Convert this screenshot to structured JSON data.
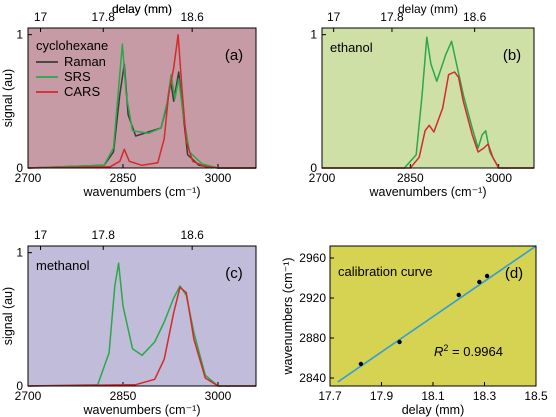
{
  "chart_data": [
    {
      "type": "line",
      "panel_label": "(a)",
      "sample_label": "cyclohexane",
      "background": "#c79ba6",
      "xlabel": "wavenumbers (cm⁻¹)",
      "ylabel": "signal (au)",
      "top_xlabel": "delay (mm)",
      "xlim": [
        2700,
        3060
      ],
      "ylim": [
        0,
        1.05
      ],
      "xticks": [
        "2700",
        "2850",
        "3000"
      ],
      "yticks": [
        "0",
        "1"
      ],
      "top_ticks": [
        "17",
        "17.8",
        "18.6"
      ],
      "legend": {
        "placement": "top-left",
        "entries": [
          "Raman",
          "SRS",
          "CARS"
        ]
      },
      "series": [
        {
          "name": "Raman",
          "color": "#3b3b3b",
          "x": [
            2700,
            2820,
            2835,
            2845,
            2852,
            2858,
            2870,
            2890,
            2910,
            2920,
            2925,
            2930,
            2938,
            2945,
            2952,
            2970,
            3000,
            3060
          ],
          "y": [
            0.0,
            0.02,
            0.12,
            0.55,
            0.78,
            0.4,
            0.24,
            0.27,
            0.3,
            0.48,
            0.66,
            0.5,
            0.72,
            0.4,
            0.1,
            0.02,
            0.0,
            0.0
          ]
        },
        {
          "name": "SRS",
          "color": "#2aa84a",
          "x": [
            2700,
            2820,
            2835,
            2843,
            2849,
            2855,
            2865,
            2890,
            2910,
            2920,
            2926,
            2932,
            2938,
            2945,
            2955,
            2975,
            3000,
            3060
          ],
          "y": [
            0.0,
            0.02,
            0.15,
            0.6,
            0.93,
            0.55,
            0.28,
            0.26,
            0.3,
            0.5,
            0.7,
            0.52,
            0.67,
            0.4,
            0.12,
            0.03,
            0.0,
            0.0
          ]
        },
        {
          "name": "CARS",
          "color": "#d42a2a",
          "x": [
            2700,
            2830,
            2845,
            2852,
            2860,
            2880,
            2905,
            2915,
            2922,
            2930,
            2937,
            2943,
            2950,
            2960,
            2980,
            3000,
            3060
          ],
          "y": [
            0.0,
            0.01,
            0.05,
            0.14,
            0.05,
            0.02,
            0.04,
            0.22,
            0.55,
            0.75,
            1.0,
            0.6,
            0.2,
            0.05,
            0.01,
            0.0,
            0.0
          ]
        }
      ]
    },
    {
      "type": "line",
      "panel_label": "(b)",
      "sample_label": "ethanol",
      "background": "#cfe0a6",
      "xlabel": "wavenumbers (cm⁻¹)",
      "ylabel": "",
      "top_xlabel": "delay (mm)",
      "xlim": [
        2700,
        3060
      ],
      "ylim": [
        0,
        1.05
      ],
      "xticks": [
        "2700",
        "2850",
        "3000"
      ],
      "yticks": [
        "0",
        "1"
      ],
      "top_ticks": [
        "17",
        "17.8",
        "18.6"
      ],
      "series": [
        {
          "name": "SRS",
          "color": "#2aa84a",
          "x": [
            2700,
            2840,
            2860,
            2870,
            2878,
            2885,
            2895,
            2910,
            2920,
            2930,
            2940,
            2955,
            2965,
            2972,
            2978,
            2985,
            3000,
            3060
          ],
          "y": [
            0.0,
            0.0,
            0.1,
            0.55,
            0.98,
            0.78,
            0.65,
            0.85,
            0.95,
            0.75,
            0.55,
            0.3,
            0.15,
            0.25,
            0.28,
            0.12,
            0.0,
            0.0
          ]
        },
        {
          "name": "CARS",
          "color": "#d42a2a",
          "x": [
            2700,
            2850,
            2865,
            2875,
            2882,
            2890,
            2905,
            2915,
            2925,
            2932,
            2940,
            2955,
            2965,
            2975,
            2982,
            2990,
            3000,
            3060
          ],
          "y": [
            0.0,
            0.0,
            0.08,
            0.28,
            0.32,
            0.27,
            0.45,
            0.7,
            0.72,
            0.68,
            0.5,
            0.25,
            0.12,
            0.15,
            0.18,
            0.08,
            0.0,
            0.0
          ]
        }
      ]
    },
    {
      "type": "line",
      "panel_label": "(c)",
      "sample_label": "methanol",
      "background": "#c1bcd9",
      "xlabel": "wavenumbers (cm⁻¹)",
      "ylabel": "signal (au)",
      "top_xlabel": "delay (mm)",
      "xlim": [
        2700,
        3060
      ],
      "ylim": [
        0,
        1.05
      ],
      "xticks": [
        "2700",
        "2850",
        "3000"
      ],
      "yticks": [
        "0",
        "1"
      ],
      "top_ticks": [
        "17",
        "17.8",
        "18.6"
      ],
      "series": [
        {
          "name": "SRS",
          "color": "#2aa84a",
          "x": [
            2700,
            2810,
            2828,
            2837,
            2843,
            2850,
            2865,
            2880,
            2900,
            2915,
            2930,
            2940,
            2950,
            2962,
            2980,
            3000,
            3060
          ],
          "y": [
            0.0,
            0.01,
            0.25,
            0.75,
            0.92,
            0.6,
            0.28,
            0.23,
            0.33,
            0.48,
            0.66,
            0.75,
            0.68,
            0.4,
            0.08,
            0.0,
            0.0
          ]
        },
        {
          "name": "CARS",
          "color": "#d42a2a",
          "x": [
            2700,
            2870,
            2900,
            2915,
            2930,
            2940,
            2950,
            2962,
            2980,
            3000,
            3060
          ],
          "y": [
            0.0,
            0.01,
            0.05,
            0.2,
            0.55,
            0.74,
            0.7,
            0.35,
            0.06,
            0.0,
            0.0
          ]
        }
      ]
    },
    {
      "type": "scatter",
      "panel_label": "(d)",
      "annotation": "calibration curve",
      "r2_label": "= 0.9964",
      "background": "#d6d252",
      "xlabel": "delay (mm)",
      "ylabel": "wavenumbers (cm⁻¹)",
      "xlim": [
        17.7,
        18.5
      ],
      "ylim": [
        2832,
        2972
      ],
      "xticks": [
        "17.7",
        "17.9",
        "18.1",
        "18.3",
        "18.5"
      ],
      "yticks": [
        "2840",
        "2880",
        "2920",
        "2960"
      ],
      "points": {
        "x": [
          17.82,
          17.97,
          18.2,
          18.28,
          18.31
        ],
        "y": [
          2854,
          2876,
          2923,
          2936,
          2942
        ]
      },
      "fit_line": {
        "color": "#2e9fd6",
        "x": [
          17.73,
          18.5
        ],
        "y": [
          2836,
          2972
        ]
      }
    }
  ]
}
